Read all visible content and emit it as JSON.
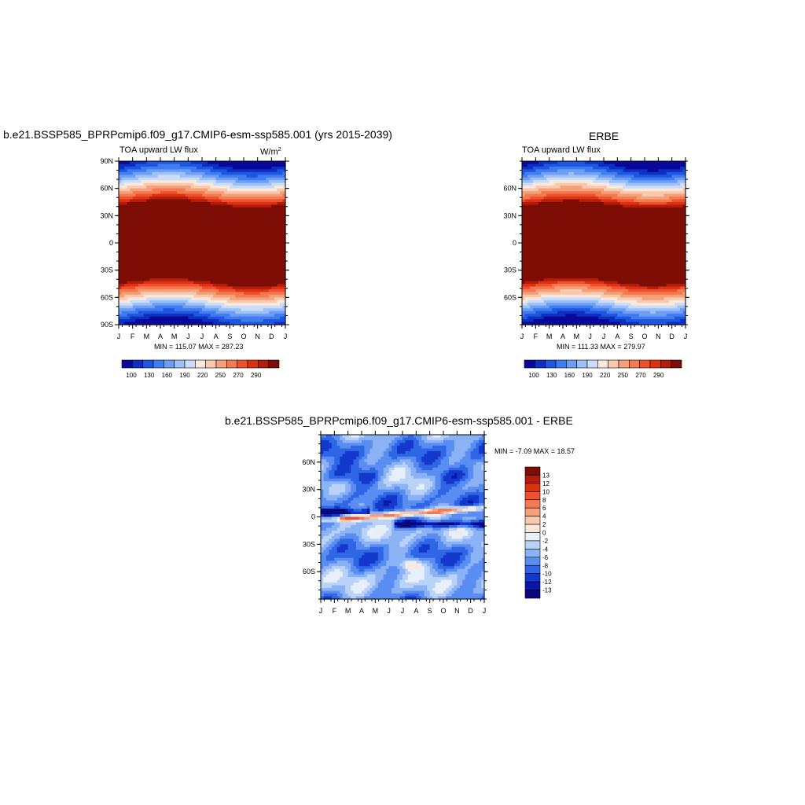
{
  "figure": {
    "top_left_title": "b.e21.BSSP585_BPRPcmip6.f09_g17.CMIP6-esm-ssp585.001 (yrs 2015-2039)",
    "top_right_title": "ERBE",
    "bottom_title": "b.e21.BSSP585_BPRPcmip6.f09_g17.CMIP6-esm-ssp585.001 - ERBE"
  },
  "chart_data": [
    {
      "type": "heatmap",
      "panel": "model",
      "subtitle": "TOA upward LW flux",
      "units": "W/m",
      "units_sup": "2",
      "x_tick_labels": [
        "J",
        "F",
        "M",
        "A",
        "M",
        "J",
        "J",
        "A",
        "S",
        "O",
        "N",
        "D",
        "J"
      ],
      "y_tick_labels": [
        "90N",
        "60N",
        "30N",
        "0",
        "30S",
        "60S",
        "90S"
      ],
      "y_ticks": [
        90,
        60,
        30,
        0,
        -30,
        -60,
        -90
      ],
      "ylim": [
        -90,
        90
      ],
      "min_max_text": "MIN = 115.07 MAX = 287.23",
      "colorbar_labels": [
        "100",
        "130",
        "160",
        "190",
        "220",
        "250",
        "270",
        "290"
      ],
      "colorbar_colors": [
        "#08089a",
        "#0c2fc4",
        "#1f56e0",
        "#3f7cf0",
        "#6c9ef5",
        "#9ec0f8",
        "#c9ddf8",
        "#fbe8dc",
        "#f8c9ad",
        "#f6a07a",
        "#f47a52",
        "#ef5130",
        "#dd3210",
        "#b41c0b",
        "#7e0d06"
      ]
    },
    {
      "type": "heatmap",
      "panel": "obs",
      "subtitle": "TOA upward LW flux",
      "x_tick_labels": [
        "J",
        "F",
        "M",
        "A",
        "M",
        "J",
        "J",
        "A",
        "S",
        "O",
        "N",
        "D",
        "J"
      ],
      "y_tick_labels": [
        "60N",
        "30N",
        "0",
        "30S",
        "60S"
      ],
      "y_ticks": [
        60,
        30,
        0,
        -30,
        -60
      ],
      "ylim": [
        -90,
        90
      ],
      "min_max_text": "MIN = 111.33 MAX = 279.97",
      "colorbar_labels": [
        "100",
        "130",
        "160",
        "190",
        "220",
        "250",
        "270",
        "290"
      ],
      "colorbar_colors": [
        "#08089a",
        "#0c2fc4",
        "#1f56e0",
        "#3f7cf0",
        "#6c9ef5",
        "#9ec0f8",
        "#c9ddf8",
        "#fbe8dc",
        "#f8c9ad",
        "#f6a07a",
        "#f47a52",
        "#ef5130",
        "#dd3210",
        "#b41c0b",
        "#7e0d06"
      ]
    },
    {
      "type": "heatmap",
      "panel": "difference",
      "x_tick_labels": [
        "J",
        "F",
        "M",
        "A",
        "M",
        "J",
        "J",
        "A",
        "S",
        "O",
        "N",
        "D",
        "J"
      ],
      "y_tick_labels": [
        "60N",
        "30N",
        "0",
        "30S",
        "60S"
      ],
      "y_ticks": [
        60,
        30,
        0,
        -30,
        -60
      ],
      "ylim": [
        -90,
        90
      ],
      "min_max_text": "MIN =  -7.09 MAX =  18.57",
      "colorbar_labels": [
        "13",
        "12",
        "10",
        "8",
        "6",
        "4",
        "2",
        "0",
        "-2",
        "-4",
        "-6",
        "-8",
        "-10",
        "-12",
        "-13"
      ],
      "colorbar_colors": [
        "#7e0d06",
        "#b41c0b",
        "#dd3210",
        "#ef5130",
        "#f47a52",
        "#f6a07a",
        "#f8c9ad",
        "#fbe8dc",
        "#e6effa",
        "#b9d2f8",
        "#8cb2f6",
        "#5a8df2",
        "#2f66e6",
        "#1338cc",
        "#0a17a8",
        "#08087e"
      ]
    }
  ]
}
